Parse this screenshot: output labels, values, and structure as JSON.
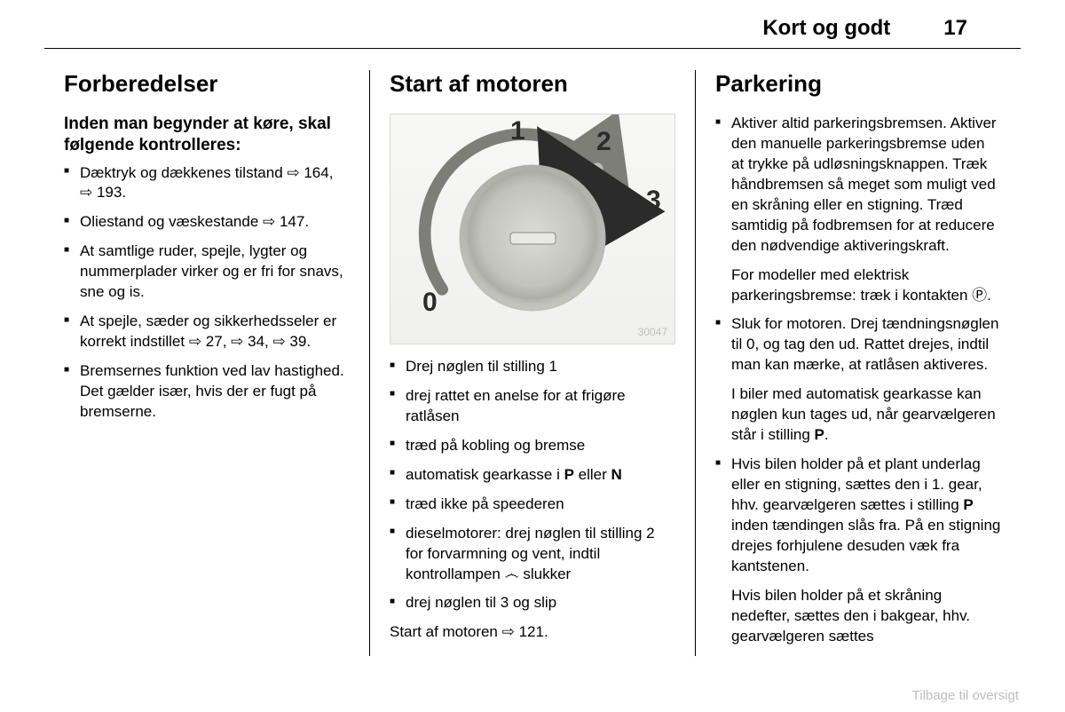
{
  "header": {
    "chapter": "Kort og godt",
    "page_number": "17"
  },
  "col1": {
    "heading": "Forberedelser",
    "sub": "Inden man begynder at køre, skal følgende kontrolleres:",
    "items": [
      "Dæktryk og dækkenes tilstand ⇨ 164, ⇨ 193.",
      "Oliestand og væskestande ⇨ 147.",
      "At samtlige ruder, spejle, lygter og nummerplader virker og er fri for snavs, sne og is.",
      "At spejle, sæder og sikkerhedsseler er korrekt indstillet ⇨ 27, ⇨ 34, ⇨ 39.",
      "Bremsernes funktion ved lav hastighed. Det gælder især, hvis der er fugt på bremserne."
    ]
  },
  "col2": {
    "heading": "Start af motoren",
    "figure": {
      "id": "30047",
      "labels": {
        "l0": "0",
        "l1": "1",
        "l2": "2",
        "l3": "3"
      }
    },
    "items": [
      "Drej nøglen til stilling 1",
      "drej rattet en anelse for at frigøre ratlåsen",
      "træd på kobling og bremse",
      "automatisk gearkasse i <b>P</b> eller <b>N</b>",
      "træd ikke på speederen",
      "dieselmotorer: drej nøglen til stilling 2 for forvarmning og vent, indtil kontrollampen ෴ slukker",
      "drej nøglen til 3 og slip"
    ],
    "footer": "Start af motoren ⇨ 121."
  },
  "col3": {
    "heading": "Parkering",
    "items": [
      {
        "main": "Aktiver altid parkeringsbremsen. Aktiver den manuelle parkeringsbremse uden at trykke på udløsningsknappen. Træk håndbremsen så meget som muligt ved en skråning eller en stigning. Træd samtidig på fodbremsen for at reducere den nødvendige aktiveringskraft.",
        "extra": "For modeller med elektrisk parkeringsbremse: træk i kontakten Ⓟ."
      },
      {
        "main": "Sluk for motoren. Drej tændningsnøglen til 0, og tag den ud. Rattet drejes, indtil man kan mærke, at ratlåsen aktiveres.",
        "extra": "I biler med automatisk gearkasse kan nøglen kun tages ud, når gearvælgeren står i stilling <b>P</b>."
      },
      {
        "main": "Hvis bilen holder på et plant underlag eller en stigning, sættes den i 1. gear, hhv. gearvælgeren sættes i stilling <b>P</b> inden tændingen slås fra. På en stigning drejes forhjulene desuden væk fra kantstenen.",
        "extra": "Hvis bilen holder på et skråning nedefter, sættes den i bakgear, hhv. gearvælgeren sættes"
      }
    ]
  },
  "footer_link": "Tilbage til oversigt"
}
